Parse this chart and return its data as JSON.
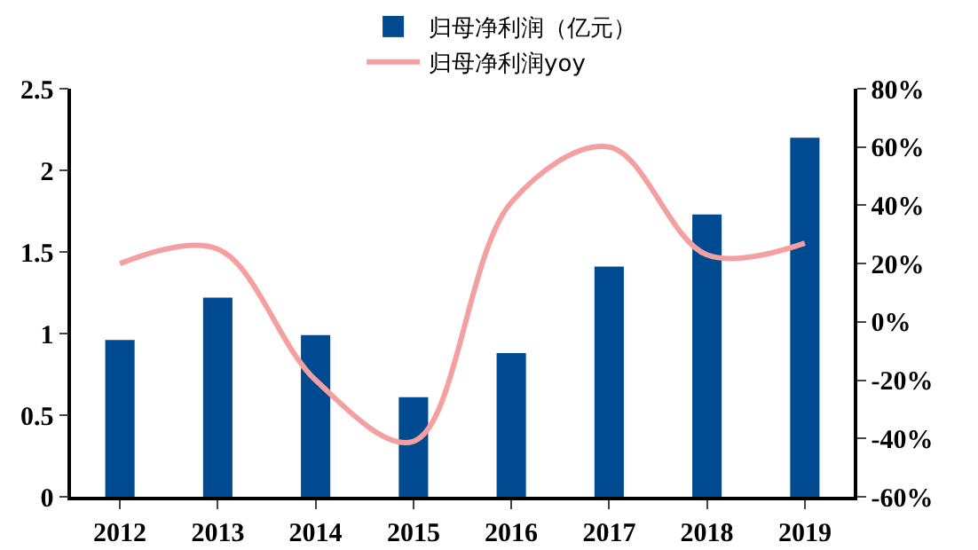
{
  "chart_data": {
    "type": "bar",
    "categories": [
      "2012",
      "2013",
      "2014",
      "2015",
      "2016",
      "2017",
      "2018",
      "2019"
    ],
    "series": [
      {
        "name": "归母净利润（亿元）",
        "color": "#004a91",
        "values": [
          0.96,
          1.22,
          0.99,
          0.61,
          0.88,
          1.41,
          1.73,
          2.2
        ]
      },
      {
        "name": "归母净利润yoy",
        "type": "line",
        "axis": "y2",
        "color": "#f4a0a0",
        "values": [
          20,
          25,
          -20,
          -41,
          41,
          60,
          23,
          27
        ]
      }
    ],
    "ylim": [
      0,
      2.5
    ],
    "yticks": [
      0,
      0.5,
      1,
      1.5,
      2,
      2.5
    ],
    "y2lim": [
      -60,
      80
    ],
    "y2ticks": [
      {
        "value": -60,
        "label": "-60%"
      },
      {
        "value": -40,
        "label": "-40%"
      },
      {
        "value": -20,
        "label": "-20%"
      },
      {
        "value": 0,
        "label": "0%"
      },
      {
        "value": 20,
        "label": "20%"
      },
      {
        "value": 40,
        "label": "40%"
      },
      {
        "value": 60,
        "label": "60%"
      },
      {
        "value": 80,
        "label": "80%"
      }
    ],
    "grid": false,
    "legend": "top",
    "marker": "none",
    "line_style": "solid"
  }
}
